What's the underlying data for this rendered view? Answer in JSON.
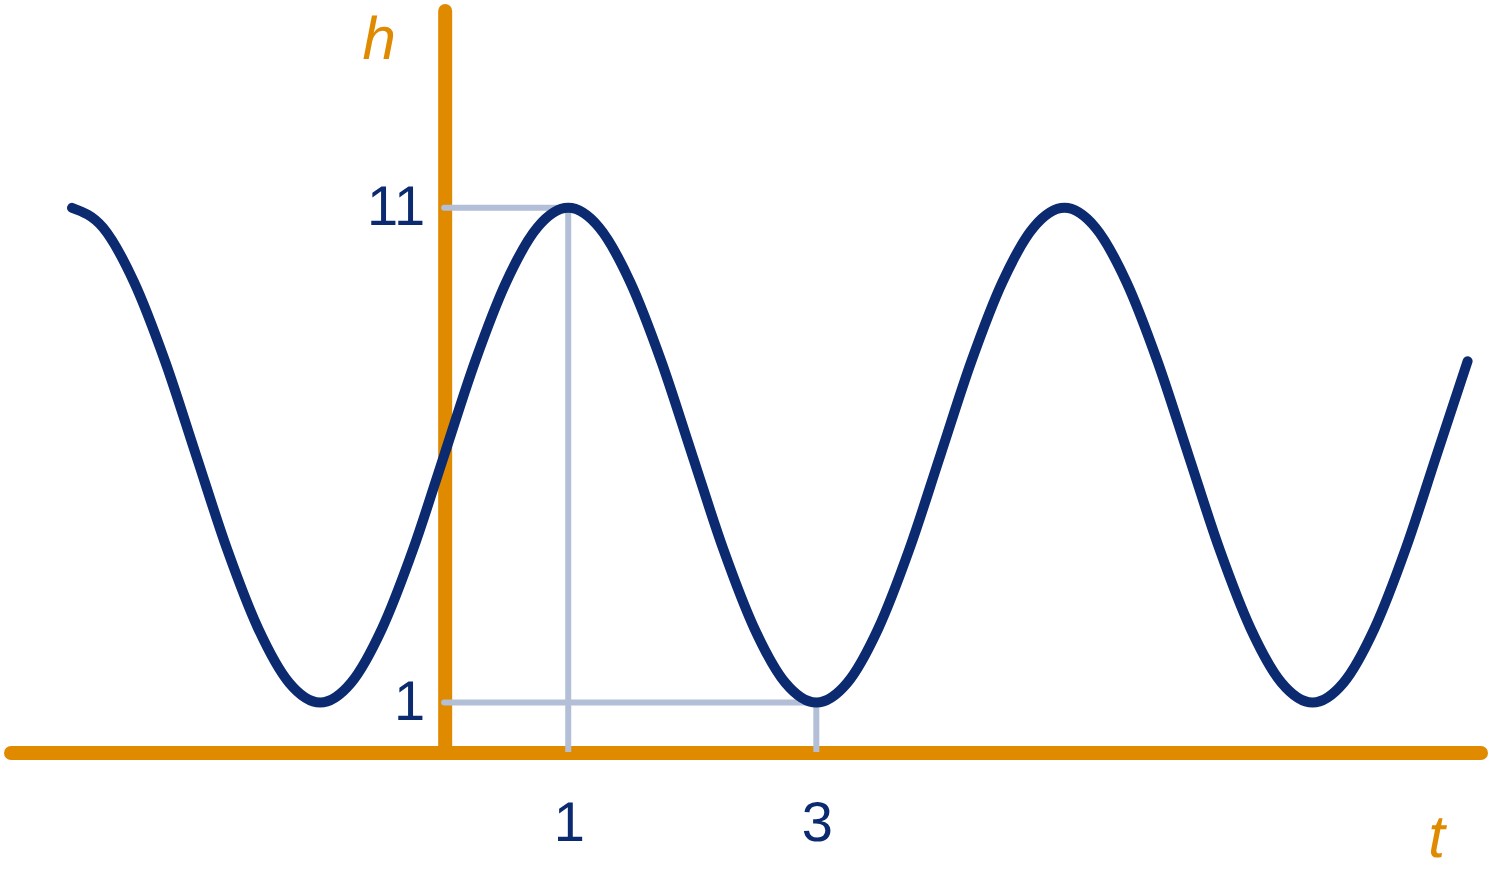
{
  "chart_data": {
    "type": "line",
    "xlabel": "t",
    "ylabel": "h",
    "xlim": [
      -3.5,
      8.35
    ],
    "ylim": [
      0,
      15
    ],
    "xticks": [
      1,
      3
    ],
    "yticks": [
      1,
      11
    ],
    "grid": false,
    "series": [
      {
        "color": "#b3bfd6",
        "x": [
          0,
          1,
          1
        ],
        "values": [
          11,
          11,
          0
        ]
      },
      {
        "color": "#b3bfd6",
        "x": [
          0,
          3,
          3
        ],
        "values": [
          1,
          1,
          0
        ]
      },
      {
        "color": "#0b2a6f",
        "x": [
          -3,
          -2.75,
          -2.5,
          -2.25,
          -2,
          -1.75,
          -1.5,
          -1.25,
          -1,
          -0.75,
          -0.5,
          -0.25,
          0,
          0.25,
          0.5,
          0.75,
          1,
          1.25,
          1.5,
          1.75,
          2,
          2.25,
          2.5,
          2.75,
          3,
          3.25,
          3.5,
          3.75,
          4,
          4.25,
          4.5,
          4.75,
          5,
          5.25,
          5.5,
          5.75,
          6,
          6.25,
          6.5,
          6.75,
          7,
          7.25,
          7.5,
          7.75,
          8,
          8.25
        ],
        "values": [
          11,
          10.6,
          9.5,
          7.9,
          6,
          4.1,
          2.5,
          1.4,
          1,
          1.4,
          2.5,
          4.1,
          6,
          7.9,
          9.5,
          10.6,
          11,
          10.6,
          9.5,
          7.9,
          6,
          4.1,
          2.5,
          1.4,
          1,
          1.4,
          2.5,
          4.1,
          6,
          7.9,
          9.5,
          10.6,
          11,
          10.6,
          9.5,
          7.9,
          6,
          4.1,
          2.5,
          1.4,
          1,
          1.4,
          2.5,
          4.1,
          6,
          7.9
        ]
      }
    ]
  }
}
